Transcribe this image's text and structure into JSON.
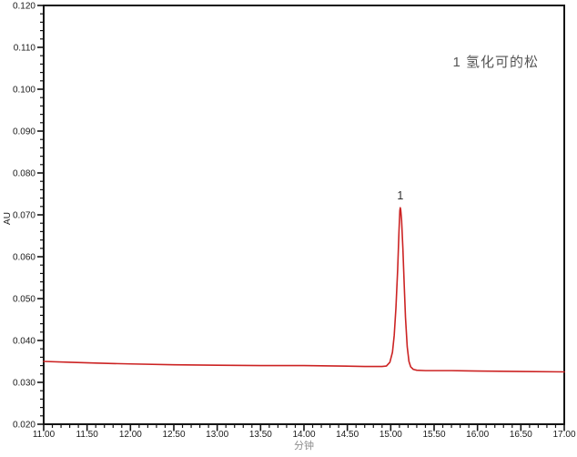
{
  "figure": {
    "background": "#ffffff",
    "axis_color": "#141414",
    "tick_label_color": "#1a1a1a",
    "annotation": {
      "text": "1 氢化可的松",
      "color": "#555555"
    },
    "peak_label": {
      "text": "1",
      "color": "#2e2e2e"
    }
  },
  "chart_data": {
    "type": "line",
    "title": "",
    "xlabel": "分钟",
    "ylabel": "AU",
    "xlim": [
      11.0,
      17.0
    ],
    "ylim": [
      0.02,
      0.12
    ],
    "x_tick_labels": [
      "11.00",
      "11.50",
      "12.00",
      "12.50",
      "13.00",
      "13.50",
      "14.00",
      "14.50",
      "15.00",
      "15.50",
      "16.00",
      "16.50",
      "17.00"
    ],
    "y_tick_labels": [
      "0.020",
      "0.030",
      "0.040",
      "0.050",
      "0.060",
      "0.070",
      "0.080",
      "0.090",
      "0.100",
      "0.110",
      "0.120"
    ],
    "x_minor_step": 0.1,
    "y_minor_step": 0.002,
    "grid": false,
    "legend_position": "none",
    "series": [
      {
        "name": "chromatogram",
        "color": "#cc2323",
        "points": [
          [
            11.0,
            0.035
          ],
          [
            11.3,
            0.0348
          ],
          [
            11.6,
            0.0346
          ],
          [
            12.0,
            0.0344
          ],
          [
            12.5,
            0.0342
          ],
          [
            13.0,
            0.0341
          ],
          [
            13.5,
            0.034
          ],
          [
            14.0,
            0.034
          ],
          [
            14.4,
            0.0339
          ],
          [
            14.7,
            0.0338
          ],
          [
            14.9,
            0.0338
          ],
          [
            14.95,
            0.0339
          ],
          [
            14.99,
            0.0348
          ],
          [
            15.02,
            0.0372
          ],
          [
            15.04,
            0.0412
          ],
          [
            15.06,
            0.0478
          ],
          [
            15.08,
            0.057
          ],
          [
            15.095,
            0.066
          ],
          [
            15.105,
            0.071
          ],
          [
            15.11,
            0.0717
          ],
          [
            15.115,
            0.0712
          ],
          [
            15.125,
            0.0688
          ],
          [
            15.14,
            0.062
          ],
          [
            15.155,
            0.0535
          ],
          [
            15.17,
            0.0455
          ],
          [
            15.19,
            0.0385
          ],
          [
            15.21,
            0.035
          ],
          [
            15.23,
            0.0337
          ],
          [
            15.26,
            0.0331
          ],
          [
            15.3,
            0.0329
          ],
          [
            15.4,
            0.0328
          ],
          [
            15.7,
            0.0328
          ],
          [
            16.0,
            0.0327
          ],
          [
            16.5,
            0.0326
          ],
          [
            17.0,
            0.0325
          ]
        ]
      }
    ],
    "peaks": [
      {
        "id": "1",
        "retention_time": 15.11,
        "apex_au": 0.0717,
        "compound": "氢化可的松"
      }
    ]
  }
}
